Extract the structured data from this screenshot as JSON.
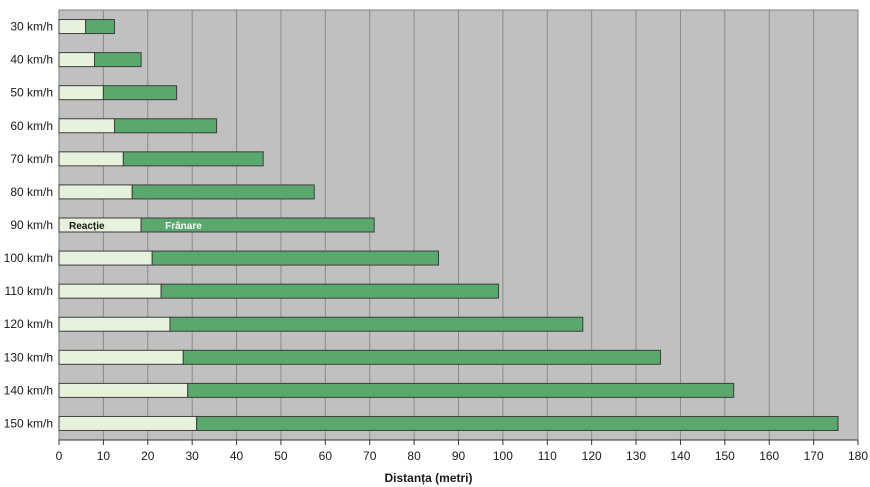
{
  "chart_data": {
    "type": "bar",
    "orientation": "horizontal",
    "stacked": true,
    "categories": [
      "30 km/h",
      "40 km/h",
      "50 km/h",
      "60 km/h",
      "70 km/h",
      "80 km/h",
      "90 km/h",
      "100 km/h",
      "110 km/h",
      "120 km/h",
      "130 km/h",
      "140 km/h",
      "150 km/h"
    ],
    "series": [
      {
        "name": "Reacție",
        "values": [
          6,
          8,
          10,
          12.5,
          14.5,
          16.5,
          18.5,
          21,
          23,
          25,
          28,
          29,
          31
        ],
        "color": "#e6f2dc"
      },
      {
        "name": "Frânare",
        "values": [
          6.5,
          10.5,
          16.5,
          23,
          31.5,
          41,
          52.5,
          64.5,
          76,
          93,
          107.5,
          123,
          144.5
        ],
        "color": "#5aa86e"
      }
    ],
    "inline_label_category": "90 km/h",
    "xlabel": "Distanța (metri)",
    "xlim": [
      0,
      180
    ],
    "xticks": [
      0,
      10,
      20,
      30,
      40,
      50,
      60,
      70,
      80,
      90,
      100,
      110,
      120,
      130,
      140,
      150,
      160,
      170,
      180
    ],
    "grid": true,
    "plot_background": "#c0c0c0",
    "legend": "none"
  }
}
